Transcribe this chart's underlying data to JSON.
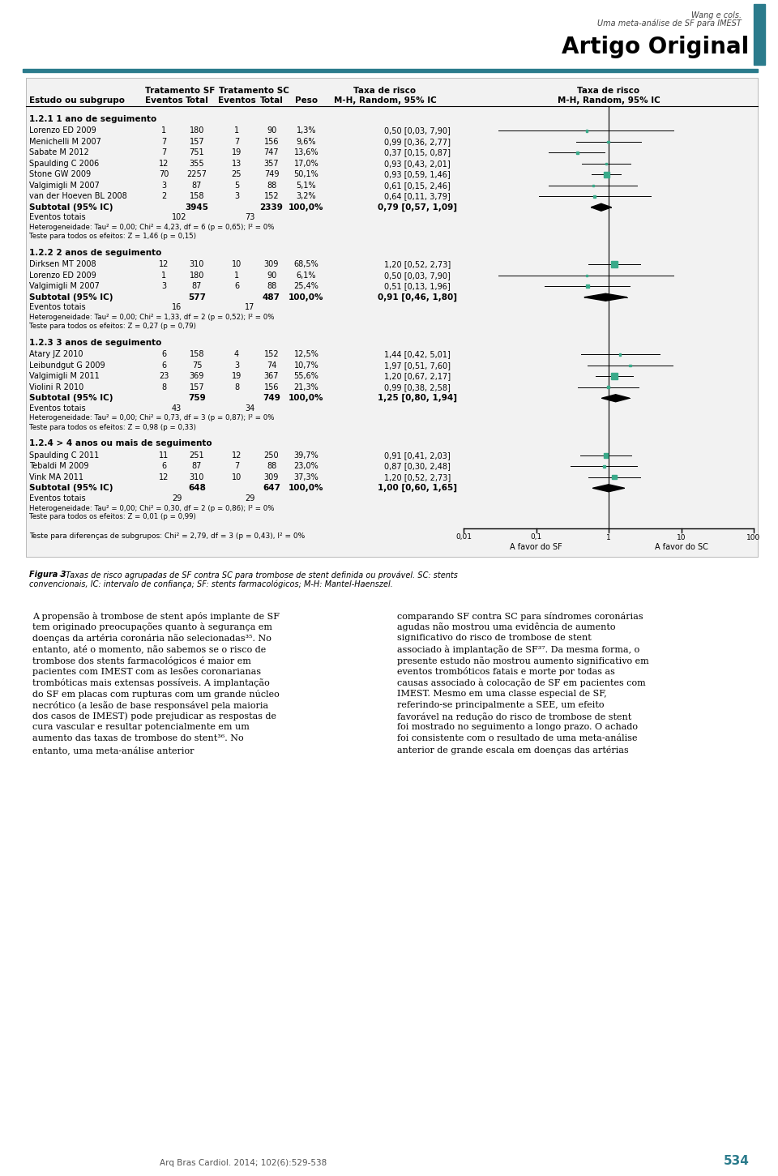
{
  "header_line1": "Wang e cols.",
  "header_line2": "Uma meta-análise de SF para IMEST",
  "header_title": "Artigo Original",
  "sections": [
    {
      "title": "1.2.1 1 ano de seguimento",
      "studies": [
        {
          "name": "Lorenzo ED 2009",
          "sf_e": 1,
          "sf_t": 180,
          "sc_e": 1,
          "sc_t": 90,
          "peso": "1,3%",
          "rr": "0,50 [0,03, 7,90]",
          "rr_val": 0.5,
          "rr_lo": 0.03,
          "rr_hi": 7.9
        },
        {
          "name": "Menichelli M 2007",
          "sf_e": 7,
          "sf_t": 157,
          "sc_e": 7,
          "sc_t": 156,
          "peso": "9,6%",
          "rr": "0,99 [0,36, 2,77]",
          "rr_val": 0.99,
          "rr_lo": 0.36,
          "rr_hi": 2.77
        },
        {
          "name": "Sabate M 2012",
          "sf_e": 7,
          "sf_t": 751,
          "sc_e": 19,
          "sc_t": 747,
          "peso": "13,6%",
          "rr": "0,37 [0,15, 0,87]",
          "rr_val": 0.37,
          "rr_lo": 0.15,
          "rr_hi": 0.87
        },
        {
          "name": "Spaulding C 2006",
          "sf_e": 12,
          "sf_t": 355,
          "sc_e": 13,
          "sc_t": 357,
          "peso": "17,0%",
          "rr": "0,93 [0,43, 2,01]",
          "rr_val": 0.93,
          "rr_lo": 0.43,
          "rr_hi": 2.01
        },
        {
          "name": "Stone GW 2009",
          "sf_e": 70,
          "sf_t": 2257,
          "sc_e": 25,
          "sc_t": 749,
          "peso": "50,1%",
          "rr": "0,93 [0,59, 1,46]",
          "rr_val": 0.93,
          "rr_lo": 0.59,
          "rr_hi": 1.46
        },
        {
          "name": "Valgimigli M 2007",
          "sf_e": 3,
          "sf_t": 87,
          "sc_e": 5,
          "sc_t": 88,
          "peso": "5,1%",
          "rr": "0,61 [0,15, 2,46]",
          "rr_val": 0.61,
          "rr_lo": 0.15,
          "rr_hi": 2.46
        },
        {
          "name": "van der Hoeven BL 2008",
          "sf_e": 2,
          "sf_t": 158,
          "sc_e": 3,
          "sc_t": 152,
          "peso": "3,2%",
          "rr": "0,64 [0,11, 3,79]",
          "rr_val": 0.64,
          "rr_lo": 0.11,
          "rr_hi": 3.79
        }
      ],
      "subtotal": {
        "total_sf": "3945",
        "total_sc": "2339",
        "peso": "100,0%",
        "rr": "0,79 [0,57, 1,09]",
        "rr_val": 0.79,
        "rr_lo": 0.57,
        "rr_hi": 1.09
      },
      "ev_sf": 102,
      "ev_sc": 73,
      "het": "Heterogeneidade: Tau² = 0,00; Chi² = 4,23, df = 6 (p = 0,65); I² = 0%",
      "teste": "Teste para todos os efeitos: Z = 1,46 (p = 0,15)"
    },
    {
      "title": "1.2.2 2 anos de seguimento",
      "studies": [
        {
          "name": "Dirksen MT 2008",
          "sf_e": 12,
          "sf_t": 310,
          "sc_e": 10,
          "sc_t": 309,
          "peso": "68,5%",
          "rr": "1,20 [0,52, 2,73]",
          "rr_val": 1.2,
          "rr_lo": 0.52,
          "rr_hi": 2.73
        },
        {
          "name": "Lorenzo ED 2009",
          "sf_e": 1,
          "sf_t": 180,
          "sc_e": 1,
          "sc_t": 90,
          "peso": "6,1%",
          "rr": "0,50 [0,03, 7,90]",
          "rr_val": 0.5,
          "rr_lo": 0.03,
          "rr_hi": 7.9
        },
        {
          "name": "Valgimigli M 2007",
          "sf_e": 3,
          "sf_t": 87,
          "sc_e": 6,
          "sc_t": 88,
          "peso": "25,4%",
          "rr": "0,51 [0,13, 1,96]",
          "rr_val": 0.51,
          "rr_lo": 0.13,
          "rr_hi": 1.96
        }
      ],
      "subtotal": {
        "total_sf": "577",
        "total_sc": "487",
        "peso": "100,0%",
        "rr": "0,91 [0,46, 1,80]",
        "rr_val": 0.91,
        "rr_lo": 0.46,
        "rr_hi": 1.8
      },
      "ev_sf": 16,
      "ev_sc": 17,
      "het": "Heterogeneidade: Tau² = 0,00; Chi² = 1,33, df = 2 (p = 0,52); I² = 0%",
      "teste": "Teste para todos os efeitos: Z = 0,27 (p = 0,79)"
    },
    {
      "title": "1.2.3 3 anos de seguimento",
      "studies": [
        {
          "name": "Atary JZ 2010",
          "sf_e": 6,
          "sf_t": 158,
          "sc_e": 4,
          "sc_t": 152,
          "peso": "12,5%",
          "rr": "1,44 [0,42, 5,01]",
          "rr_val": 1.44,
          "rr_lo": 0.42,
          "rr_hi": 5.01
        },
        {
          "name": "Leibundgut G 2009",
          "sf_e": 6,
          "sf_t": 75,
          "sc_e": 3,
          "sc_t": 74,
          "peso": "10,7%",
          "rr": "1,97 [0,51, 7,60]",
          "rr_val": 1.97,
          "rr_lo": 0.51,
          "rr_hi": 7.6
        },
        {
          "name": "Valgimigli M 2011",
          "sf_e": 23,
          "sf_t": 369,
          "sc_e": 19,
          "sc_t": 367,
          "peso": "55,6%",
          "rr": "1,20 [0,67, 2,17]",
          "rr_val": 1.2,
          "rr_lo": 0.67,
          "rr_hi": 2.17
        },
        {
          "name": "Violini R 2010",
          "sf_e": 8,
          "sf_t": 157,
          "sc_e": 8,
          "sc_t": 156,
          "peso": "21,3%",
          "rr": "0,99 [0,38, 2,58]",
          "rr_val": 0.99,
          "rr_lo": 0.38,
          "rr_hi": 2.58
        }
      ],
      "subtotal": {
        "total_sf": "759",
        "total_sc": "749",
        "peso": "100,0%",
        "rr": "1,25 [0,80, 1,94]",
        "rr_val": 1.25,
        "rr_lo": 0.8,
        "rr_hi": 1.94
      },
      "ev_sf": 43,
      "ev_sc": 34,
      "het": "Heterogeneidade: Tau² = 0,00; Chi² = 0,73, df = 3 (p = 0,87); I² = 0%",
      "teste": "Teste para todos os efeitos: Z = 0,98 (p = 0,33)"
    },
    {
      "title": "1.2.4 > 4 anos ou mais de seguimento",
      "studies": [
        {
          "name": "Spaulding C 2011",
          "sf_e": 11,
          "sf_t": 251,
          "sc_e": 12,
          "sc_t": 250,
          "peso": "39,7%",
          "rr": "0,91 [0,41, 2,03]",
          "rr_val": 0.91,
          "rr_lo": 0.41,
          "rr_hi": 2.03
        },
        {
          "name": "Tebaldi M 2009",
          "sf_e": 6,
          "sf_t": 87,
          "sc_e": 7,
          "sc_t": 88,
          "peso": "23,0%",
          "rr": "0,87 [0,30, 2,48]",
          "rr_val": 0.87,
          "rr_lo": 0.3,
          "rr_hi": 2.48
        },
        {
          "name": "Vink MA 2011",
          "sf_e": 12,
          "sf_t": 310,
          "sc_e": 10,
          "sc_t": 309,
          "peso": "37,3%",
          "rr": "1,20 [0,52, 2,73]",
          "rr_val": 1.2,
          "rr_lo": 0.52,
          "rr_hi": 2.73
        }
      ],
      "subtotal": {
        "total_sf": "648",
        "total_sc": "647",
        "peso": "100,0%",
        "rr": "1,00 [0,60, 1,65]",
        "rr_val": 1.0,
        "rr_lo": 0.6,
        "rr_hi": 1.65
      },
      "ev_sf": 29,
      "ev_sc": 29,
      "het": "Heterogeneidade: Tau² = 0,00; Chi² = 0,30, df = 2 (p = 0,86); I² = 0%",
      "teste": "Teste para todos os efeitos: Z = 0,01 (p = 0,99)"
    }
  ],
  "teste_subgrupos": "Teste para diferenças de subgrupos: Chi² = 2,79, df = 3 (p = 0,43), I² = 0%",
  "figura_bold": "Figura 3",
  "figura_rest": " – Taxas de risco agrupadas de SF contra SC para trombose de stent definida ou provável. SC: stents convencionais, IC: intervalo de confiança; SF: stents farmacológicos; M-H: Mantel-Haenszel.",
  "body_left": "A propensão à trombose de stent após implante de SF tem originado preocupações quanto à segurança em doenças da artéria coronária não selecionadas³⁵. No entanto, até o momento, não sabemos se o risco de trombose dos stents farmacológicos é maior em pacientes com IMEST com as lesões coronarianas trombóticas mais extensas possíveis. A implantação do SF em placas com rupturas com um grande núcleo necrótico (a lesão de base responsável pela maioria dos casos de IMEST) pode prejudicar as respostas de cura vascular e resultar potencialmente em um aumento das taxas de trombose do stent³⁶. No entanto, uma meta-análise anterior",
  "body_right": "comparando SF contra SC para síndromes coronárias agudas não mostrou uma evidência de aumento significativo do risco de trombose de stent associado à implantação de SF³⁷. Da mesma forma, o presente estudo não mostrou aumento significativo em eventos trombóticos fatais e morte por todas as causas associado à colocação de SF em pacientes com IMEST. Mesmo em uma classe especial de SF, referindo-se principalmente a SEE, um efeito favorável na redução do risco de trombose de stent foi mostrado no seguimento a longo prazo. O achado foi consistente com o resultado de uma meta-análise anterior de grande escala em doenças das artérias",
  "footer_left": "Arq Bras Cardiol. 2014; 102(6):529-538",
  "footer_page": "534",
  "teal": "#2b7b8c",
  "teal_bar": "#1e6b7a",
  "forest_sq": "#3aaa8a",
  "axis_ticks": [
    "0,01",
    "0,1",
    "1",
    "10",
    "100"
  ],
  "axis_vals": [
    0.01,
    0.1,
    1.0,
    10.0,
    100.0
  ],
  "label_sf": "A favor do SF",
  "label_sc": "A favor do SC"
}
